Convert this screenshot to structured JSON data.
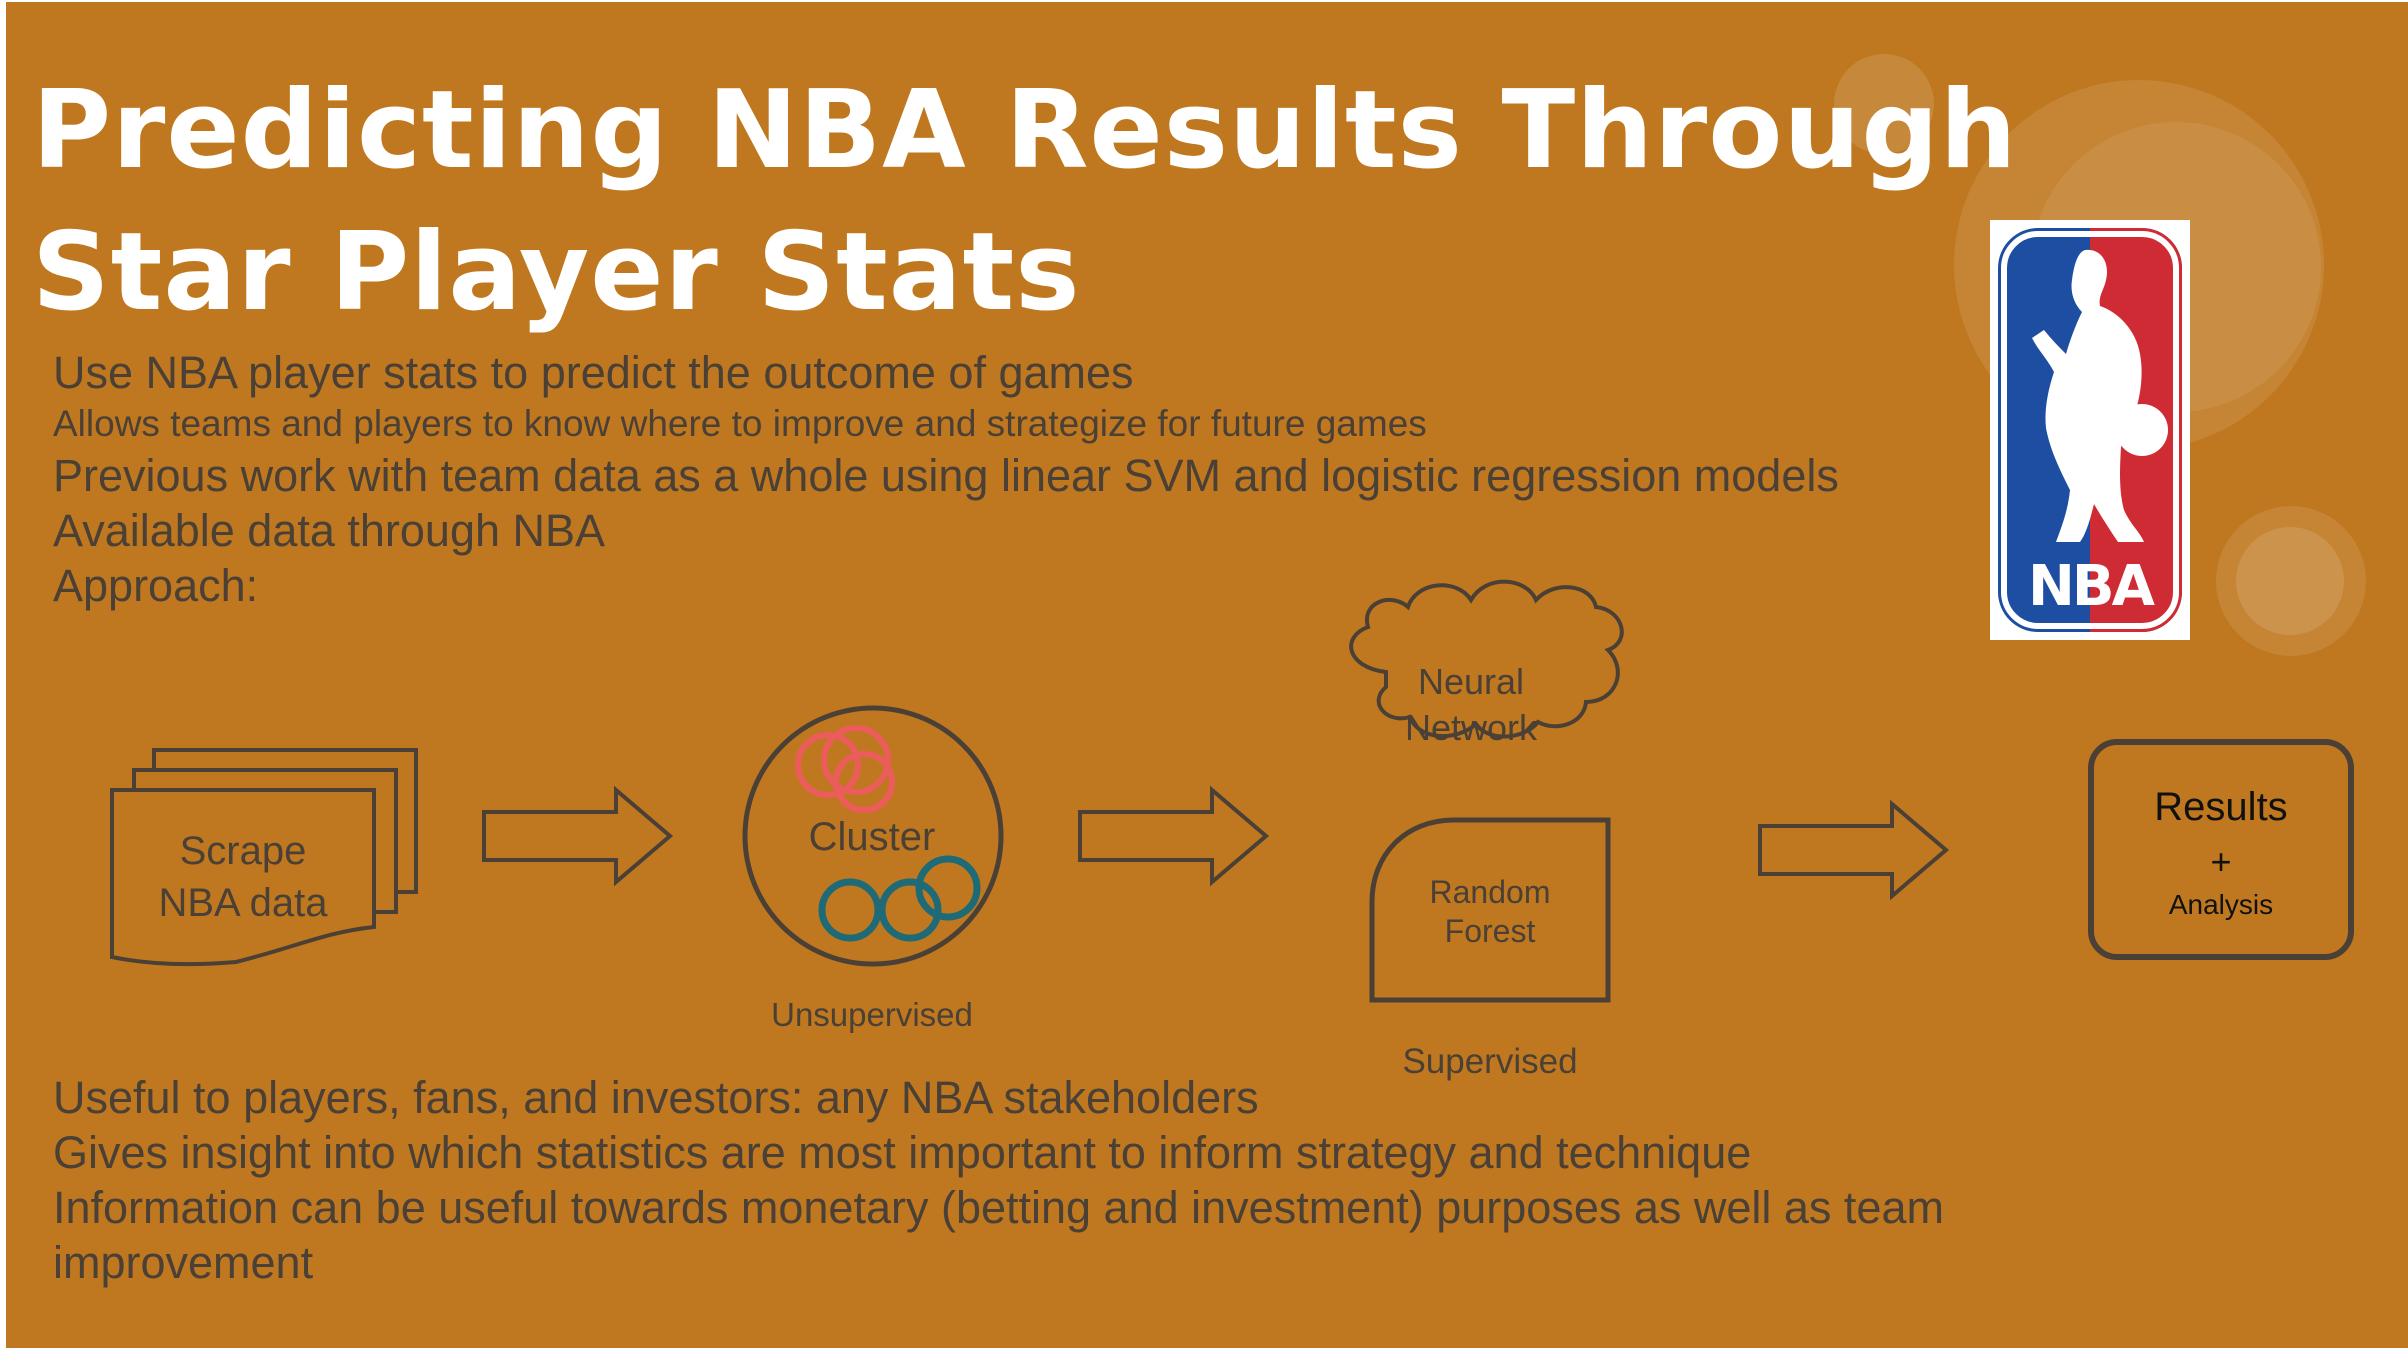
{
  "slide": {
    "title": "Predicting NBA Results Through Star Player Stats",
    "intro_lines": [
      "Use NBA player stats to predict the outcome of games",
      "Allows teams and players to know where to improve and strategize for future games",
      "Previous work with team data as a whole using linear SVM and logistic regression models",
      "Available data through NBA",
      "Approach:"
    ],
    "outro_lines": [
      "Useful to players, fans, and investors: any NBA stakeholders",
      "Gives insight into which statistics are most important to inform strategy and technique",
      "Information can be useful towards monetary (betting and investment) purposes as well as team",
      "improvement"
    ]
  },
  "logo": {
    "text": "NBA",
    "colors": {
      "blue": "#1d4ea2",
      "red": "#cf2b34",
      "white": "#ffffff"
    }
  },
  "diagram": {
    "scrape": [
      "Scrape",
      "NBA data"
    ],
    "cluster": "Cluster",
    "unsupervised": "Unsupervised",
    "neural": [
      "Neural",
      "Network"
    ],
    "random_forest": [
      "Random",
      "Forest"
    ],
    "supervised": "Supervised",
    "results": "Results",
    "plus": "+",
    "analysis": "Analysis"
  },
  "colors": {
    "background": "#bf781f",
    "text": "#4a4036",
    "title": "#ffffff",
    "cluster_red": "#ec5c5c",
    "cluster_teal": "#1e6a77"
  }
}
